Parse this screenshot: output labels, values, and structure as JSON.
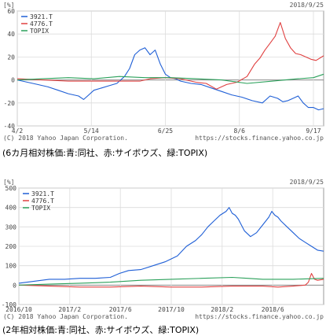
{
  "captions": [
    "(6カ月相対株価:青:同社、赤:サイボウズ、緑:TOPIX)",
    "(2年相対株価:青:同社、赤:サイボウズ、緑:TOPIX)"
  ],
  "chart_data": [
    {
      "type": "line",
      "unit_label": "[%]",
      "date_label": "2018/9/25",
      "copyright": "(C) 2018 Yahoo Japan Corporation.",
      "source": "https://stocks.finance.yahoo.co.jp",
      "grid": true,
      "legend_position": "top-left",
      "xlim": [
        0,
        120
      ],
      "ylim": [
        -40,
        60
      ],
      "yticks": [
        -40,
        -20,
        0,
        20,
        40,
        60
      ],
      "xticks": [
        {
          "x": 0,
          "label": "4/2"
        },
        {
          "x": 29,
          "label": "5/14"
        },
        {
          "x": 58,
          "label": "6/25"
        },
        {
          "x": 87,
          "label": "8/6"
        },
        {
          "x": 116,
          "label": "9/17"
        }
      ],
      "series": [
        {
          "name": "3921.T",
          "color": "#1f5fd6",
          "x": [
            0,
            4,
            8,
            12,
            16,
            20,
            24,
            26,
            28,
            30,
            33,
            36,
            39,
            42,
            44,
            46,
            48,
            50,
            52,
            54,
            56,
            58,
            60,
            62,
            64,
            68,
            72,
            76,
            80,
            84,
            88,
            92,
            96,
            99,
            102,
            104,
            106,
            108,
            110,
            112,
            114,
            116,
            118,
            120
          ],
          "y": [
            0,
            -2,
            -4,
            -6,
            -9,
            -12,
            -14,
            -17,
            -13,
            -9,
            -7,
            -5,
            -3,
            3,
            10,
            22,
            26,
            28,
            22,
            26,
            14,
            5,
            2,
            1,
            -1,
            -3,
            -4,
            -7,
            -10,
            -13,
            -15,
            -18,
            -20,
            -14,
            -16,
            -19,
            -18,
            -16,
            -14,
            -20,
            -24,
            -24,
            -26,
            -25
          ],
          "points": "manual"
        },
        {
          "name": "4776.T",
          "color": "#e04040",
          "x": [
            0,
            10,
            20,
            30,
            40,
            48,
            52,
            58,
            64,
            70,
            74,
            78,
            82,
            86,
            90,
            93,
            95,
            97,
            99,
            101,
            103,
            105,
            107,
            109,
            111,
            113,
            115,
            117,
            120
          ],
          "y": [
            1,
            0,
            -1,
            -1,
            -1,
            -1,
            1,
            2,
            1,
            -2,
            -3,
            -8,
            -4,
            -2,
            3,
            14,
            19,
            26,
            32,
            38,
            50,
            36,
            28,
            23,
            22,
            20,
            18,
            17,
            21
          ]
        },
        {
          "name": "TOPIX",
          "color": "#2aa05a",
          "x": [
            0,
            10,
            20,
            30,
            40,
            50,
            60,
            70,
            80,
            90,
            100,
            110,
            116,
            120
          ],
          "y": [
            0,
            1,
            2,
            1,
            3,
            2,
            2,
            1,
            0,
            -3,
            -1,
            1,
            2,
            5
          ]
        }
      ]
    },
    {
      "type": "line",
      "unit_label": "[%]",
      "date_label": "2018/9/25",
      "copyright": "(C) 2018 Yahoo Japan Corporation.",
      "source": "https://stocks.finance.yahoo.co.jp",
      "grid": true,
      "legend_position": "top-left",
      "xlim": [
        0,
        100
      ],
      "ylim": [
        -100,
        500
      ],
      "yticks": [
        -100,
        0,
        100,
        200,
        300,
        400,
        500
      ],
      "xticks": [
        {
          "x": 0,
          "label": "2016/10"
        },
        {
          "x": 16.7,
          "label": "2017/2"
        },
        {
          "x": 33.3,
          "label": "2017/6"
        },
        {
          "x": 50,
          "label": "2017/10"
        },
        {
          "x": 66.7,
          "label": "2018/2"
        },
        {
          "x": 83.3,
          "label": "2018/6"
        }
      ],
      "series": [
        {
          "name": "3921.T",
          "color": "#1f5fd6",
          "x": [
            0,
            5,
            10,
            15,
            20,
            25,
            30,
            33,
            36,
            40,
            44,
            48,
            52,
            55,
            58,
            60,
            62,
            64,
            66,
            68,
            69,
            70,
            71,
            72,
            74,
            76,
            78,
            80,
            82,
            83,
            84,
            85,
            86,
            88,
            90,
            92,
            94,
            96,
            98,
            100
          ],
          "y": [
            10,
            20,
            30,
            30,
            35,
            35,
            40,
            60,
            75,
            80,
            100,
            120,
            150,
            200,
            230,
            260,
            300,
            330,
            360,
            380,
            400,
            370,
            360,
            340,
            280,
            250,
            270,
            310,
            350,
            380,
            360,
            350,
            330,
            300,
            270,
            240,
            220,
            200,
            180,
            175
          ]
        },
        {
          "name": "4776.T",
          "color": "#e04040",
          "x": [
            0,
            10,
            20,
            30,
            40,
            50,
            60,
            70,
            80,
            85,
            90,
            94,
            95,
            96,
            97,
            98,
            100
          ],
          "y": [
            0,
            -5,
            -10,
            -10,
            -5,
            -10,
            -10,
            -5,
            -5,
            -10,
            -5,
            0,
            15,
            60,
            30,
            25,
            30
          ]
        },
        {
          "name": "TOPIX",
          "color": "#2aa05a",
          "x": [
            0,
            10,
            20,
            30,
            40,
            50,
            60,
            70,
            75,
            80,
            90,
            100
          ],
          "y": [
            0,
            5,
            10,
            15,
            25,
            30,
            35,
            40,
            35,
            30,
            30,
            35
          ]
        }
      ]
    }
  ]
}
